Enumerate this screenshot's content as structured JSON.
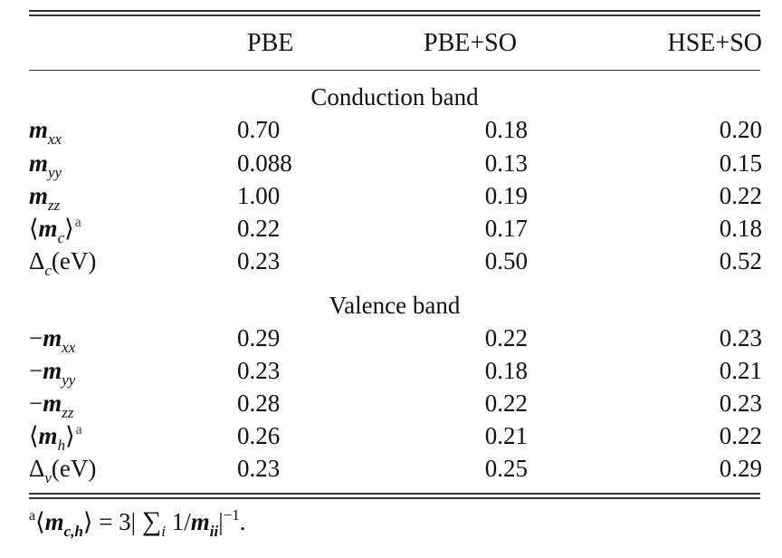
{
  "header": {
    "col1": "PBE",
    "col2": "PBE+SO",
    "col3": "HSE+SO"
  },
  "sections": {
    "conduction": {
      "title": "Conduction band",
      "rows": [
        {
          "label": "m_xx",
          "pbe": "0.70",
          "pbe_so": "0.18",
          "hse_so": "0.20"
        },
        {
          "label": "m_yy",
          "pbe": "0.088",
          "pbe_so": "0.13",
          "hse_so": "0.15"
        },
        {
          "label": "m_zz",
          "pbe": "1.00",
          "pbe_so": "0.19",
          "hse_so": "0.22"
        },
        {
          "label": "⟨m_c⟩^a",
          "pbe": "0.22",
          "pbe_so": "0.17",
          "hse_so": "0.18"
        },
        {
          "label": "Δ_c(eV)",
          "pbe": "0.23",
          "pbe_so": "0.50",
          "hse_so": "0.52"
        }
      ]
    },
    "valence": {
      "title": "Valence band",
      "rows": [
        {
          "label": "−m_xx",
          "pbe": "0.29",
          "pbe_so": "0.22",
          "hse_so": "0.23"
        },
        {
          "label": "−m_yy",
          "pbe": "0.23",
          "pbe_so": "0.18",
          "hse_so": "0.21"
        },
        {
          "label": "−m_zz",
          "pbe": "0.28",
          "pbe_so": "0.22",
          "hse_so": "0.23"
        },
        {
          "label": "⟨m_h⟩^a",
          "pbe": "0.26",
          "pbe_so": "0.21",
          "hse_so": "0.22"
        },
        {
          "label": "Δ_v(eV)",
          "pbe": "0.23",
          "pbe_so": "0.25",
          "hse_so": "0.29"
        }
      ]
    }
  },
  "footnote": "a⟨m_c,h⟩ = 3|∑_i 1/m_ii|^−1."
}
